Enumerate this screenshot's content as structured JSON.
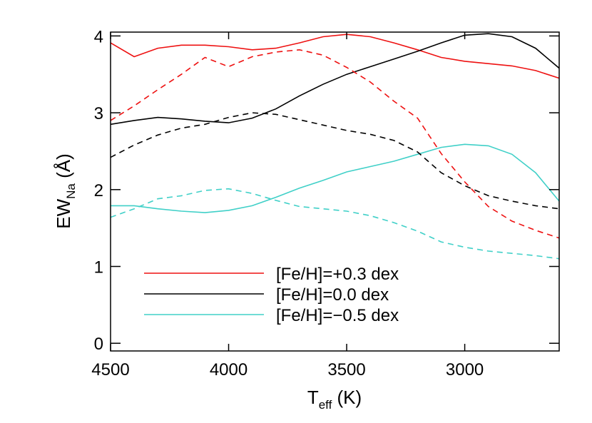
{
  "chart_data": {
    "type": "line",
    "xlabel": {
      "main": "T",
      "sub": "eff",
      "unit": " (K)"
    },
    "ylabel": {
      "main": "EW",
      "sub": "Na",
      "unit": " (Å)"
    },
    "xlim": [
      4500,
      2600
    ],
    "ylim": [
      -0.1,
      4.05
    ],
    "xticks": [
      4500,
      4000,
      3500,
      3000
    ],
    "yticks": [
      0,
      1,
      2,
      3,
      4
    ],
    "grid": false,
    "legend_position": "bottom-left",
    "x": [
      4500,
      4400,
      4300,
      4200,
      4100,
      4000,
      3900,
      3800,
      3700,
      3600,
      3500,
      3400,
      3300,
      3200,
      3100,
      3000,
      2900,
      2800,
      2700,
      2600
    ],
    "series": [
      {
        "name": "[Fe/H]=+0.3 dex",
        "color": "#ee1111",
        "dash": "solid",
        "values": [
          3.91,
          3.73,
          3.84,
          3.88,
          3.88,
          3.86,
          3.82,
          3.84,
          3.91,
          3.99,
          4.02,
          3.99,
          3.91,
          3.82,
          3.72,
          3.67,
          3.64,
          3.61,
          3.55,
          3.45
        ]
      },
      {
        "name": "[Fe/H]=0.0 dex",
        "color": "#000000",
        "dash": "solid",
        "values": [
          2.85,
          2.9,
          2.94,
          2.92,
          2.89,
          2.87,
          2.93,
          3.05,
          3.22,
          3.37,
          3.5,
          3.6,
          3.7,
          3.8,
          3.91,
          4.01,
          4.03,
          3.99,
          3.84,
          3.58
        ]
      },
      {
        "name": "[Fe/H]=-0.5 dex",
        "color": "#40d0c8",
        "dash": "solid",
        "values": [
          1.79,
          1.79,
          1.75,
          1.72,
          1.7,
          1.73,
          1.79,
          1.9,
          2.02,
          2.12,
          2.23,
          2.3,
          2.37,
          2.46,
          2.55,
          2.59,
          2.57,
          2.46,
          2.22,
          1.85
        ]
      },
      {
        "name": "",
        "color": "#ee1111",
        "dash": "dashed",
        "values": [
          2.9,
          3.09,
          3.3,
          3.5,
          3.72,
          3.6,
          3.73,
          3.79,
          3.82,
          3.75,
          3.59,
          3.4,
          3.15,
          2.93,
          2.47,
          2.1,
          1.78,
          1.59,
          1.47,
          1.37
        ]
      },
      {
        "name": "",
        "color": "#000000",
        "dash": "dashed",
        "values": [
          2.42,
          2.58,
          2.71,
          2.8,
          2.85,
          2.94,
          3.0,
          2.98,
          2.91,
          2.84,
          2.77,
          2.72,
          2.64,
          2.49,
          2.22,
          2.05,
          1.92,
          1.85,
          1.79,
          1.75
        ]
      },
      {
        "name": "",
        "color": "#40d0c8",
        "dash": "dashed",
        "values": [
          1.64,
          1.75,
          1.88,
          1.92,
          1.99,
          2.01,
          1.95,
          1.86,
          1.78,
          1.75,
          1.72,
          1.66,
          1.57,
          1.46,
          1.32,
          1.25,
          1.2,
          1.17,
          1.14,
          1.1
        ]
      }
    ]
  }
}
